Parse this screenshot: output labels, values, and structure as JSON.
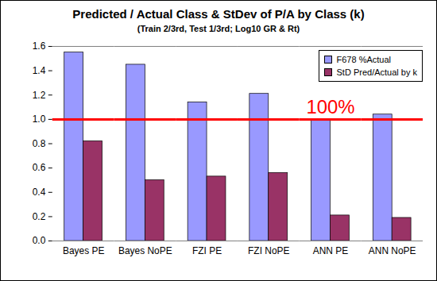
{
  "chart_data": {
    "type": "bar",
    "title": "Predicted / Actual Class & StDev of P/A by Class (k)",
    "subtitle": "(Train 2/3rd, Test 1/3rd; Log10 GR & Rt)",
    "categories": [
      "Bayes PE",
      "Bayes NoPE",
      "FZI PE",
      "FZI NoPE",
      "ANN PE",
      "ANN NoPE"
    ],
    "series": [
      {
        "name": "F678 %Actual",
        "color": "#9999ff",
        "values": [
          1.55,
          1.45,
          1.14,
          1.21,
          0.99,
          1.04
        ]
      },
      {
        "name": "StD Pred/Actual by k",
        "color": "#993366",
        "values": [
          0.82,
          0.5,
          0.53,
          0.56,
          0.21,
          0.19
        ]
      }
    ],
    "ylim": [
      0,
      1.6
    ],
    "yticks": [
      {
        "value": 0,
        "label": "0.0"
      },
      0.2,
      0.4,
      0.6,
      0.8,
      {
        "value": 1,
        "label": "1.0"
      },
      1.2,
      1.4,
      1.6
    ],
    "grid": false,
    "legend": "top-right",
    "reference_line": {
      "value": 1,
      "label": "100%",
      "color": "#ff0000"
    }
  }
}
